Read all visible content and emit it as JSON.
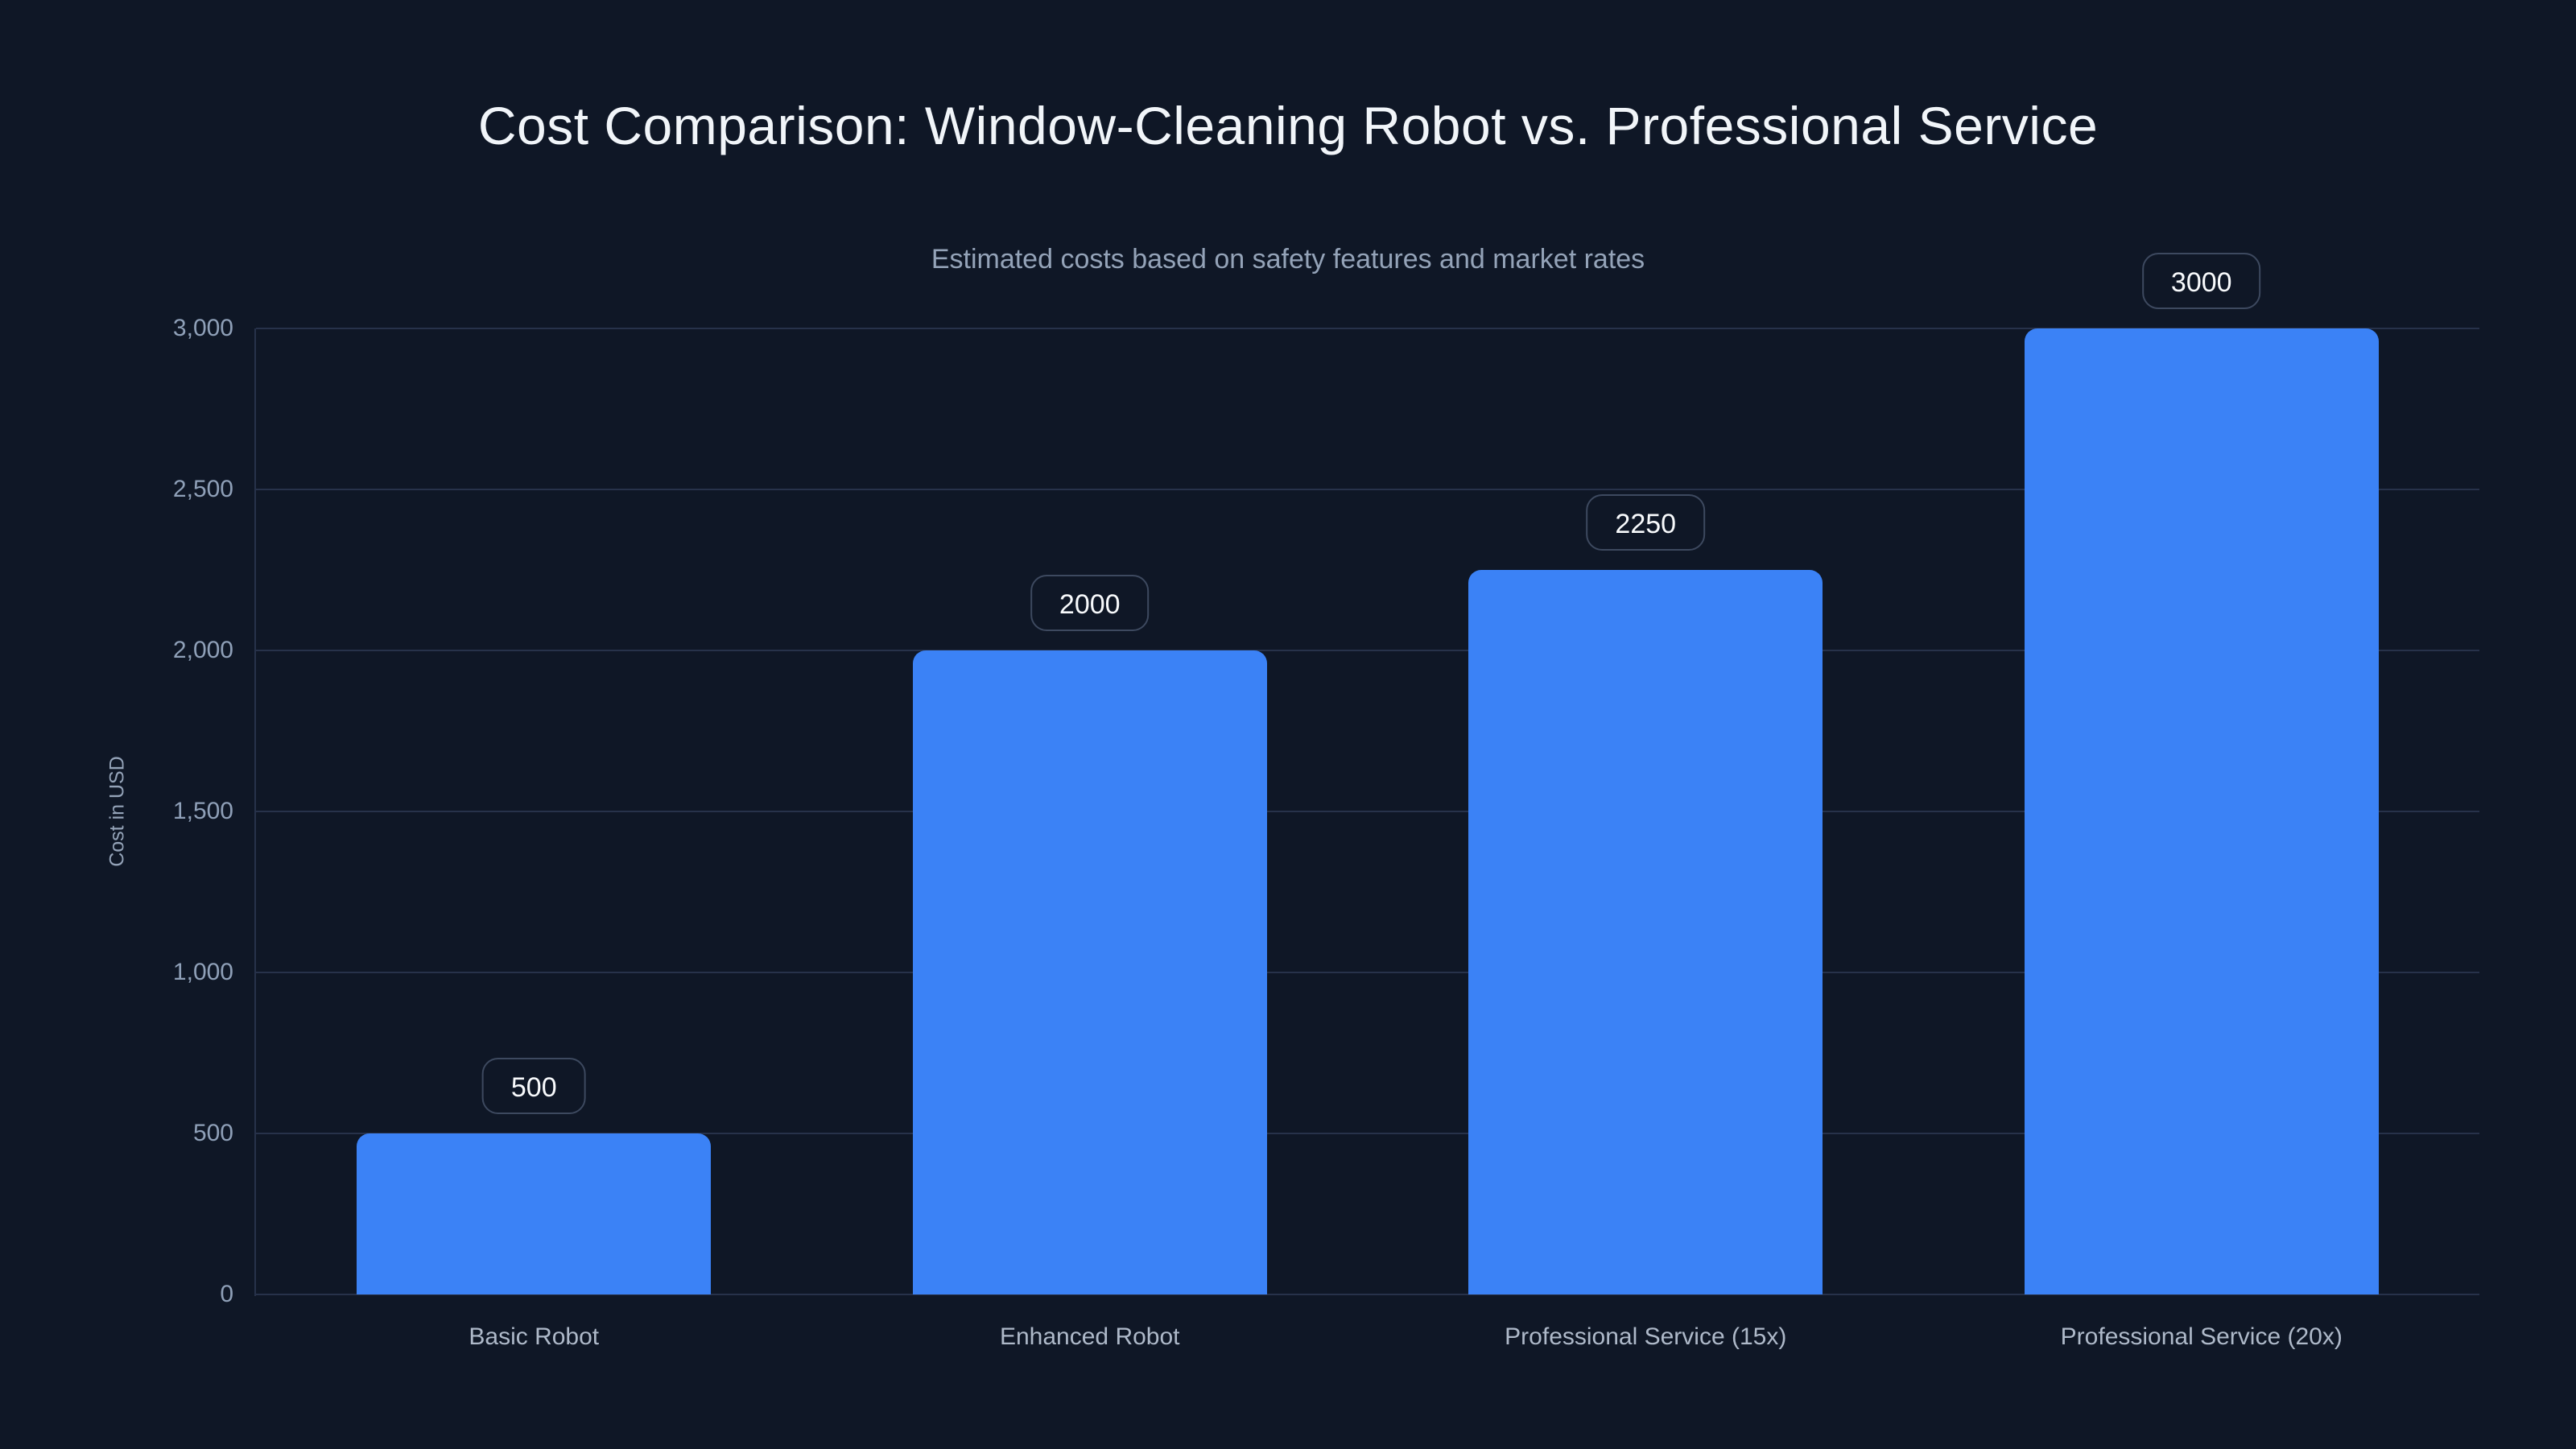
{
  "chart_data": {
    "type": "bar",
    "title": "Cost Comparison: Window-Cleaning Robot vs. Professional Service",
    "subtitle": "Estimated costs based on safety features and market rates",
    "xlabel": "",
    "ylabel": "Cost in USD",
    "categories": [
      "Basic Robot",
      "Enhanced Robot",
      "Professional Service (15x)",
      "Professional Service (20x)"
    ],
    "values": [
      500,
      2000,
      2250,
      3000
    ],
    "value_labels": [
      "500",
      "2000",
      "2250",
      "3000"
    ],
    "ylim": [
      0,
      3000
    ],
    "yticks": [
      0,
      500,
      1000,
      1500,
      2000,
      2500,
      3000
    ],
    "ytick_labels": [
      "0",
      "500",
      "1,000",
      "1,500",
      "2,000",
      "2,500",
      "3,000"
    ],
    "grid": true,
    "legend": false
  },
  "colors": {
    "background": "#0f1726",
    "bar": "#3b82f6",
    "gridline": "#27324a",
    "title": "#f1f5f9",
    "subtitle": "#94a3b8",
    "tick_label": "#8fa0b8",
    "category_label": "#aeb9c9",
    "badge_border": "#3d495f",
    "badge_text": "#f8fafc"
  }
}
